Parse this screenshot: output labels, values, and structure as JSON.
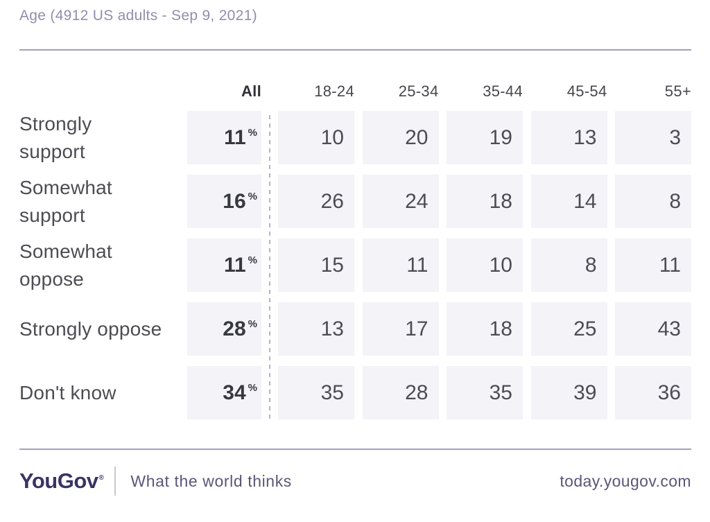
{
  "header": {
    "title": "Age (4912 US adults - Sep 9, 2021)"
  },
  "chart_data": {
    "type": "table",
    "title": "Age (4912 US adults - Sep 9, 2021)",
    "sample_size": 4912,
    "sample_note": "US adults",
    "date": "Sep 9, 2021",
    "columns": [
      "All",
      "18-24",
      "25-34",
      "35-44",
      "45-54",
      "55+"
    ],
    "all_unit": "%",
    "rows": [
      {
        "label": "Strongly\nsupport",
        "all": 11,
        "values": [
          10,
          20,
          19,
          13,
          3
        ]
      },
      {
        "label": "Somewhat\nsupport",
        "all": 16,
        "values": [
          26,
          24,
          18,
          14,
          8
        ]
      },
      {
        "label": "Somewhat\noppose",
        "all": 11,
        "values": [
          15,
          11,
          10,
          8,
          11
        ]
      },
      {
        "label": "Strongly oppose",
        "all": 28,
        "values": [
          13,
          17,
          18,
          25,
          43
        ]
      },
      {
        "label": "Don't know",
        "all": 34,
        "values": [
          35,
          28,
          35,
          39,
          36
        ]
      }
    ]
  },
  "footer": {
    "logo": "YouGov",
    "registered_mark": "®",
    "tagline": "What the world thinks",
    "site": "today.yougov.com"
  },
  "colors": {
    "title_text": "#928dac",
    "rule": "#948fae",
    "cell_background": "#f3f3f8",
    "dashed_divider": "#b4b1cb",
    "number_text": "#4c4c53",
    "all_value_text": "#38383f",
    "logo_text": "#393463",
    "footer_text": "#5b5677"
  }
}
